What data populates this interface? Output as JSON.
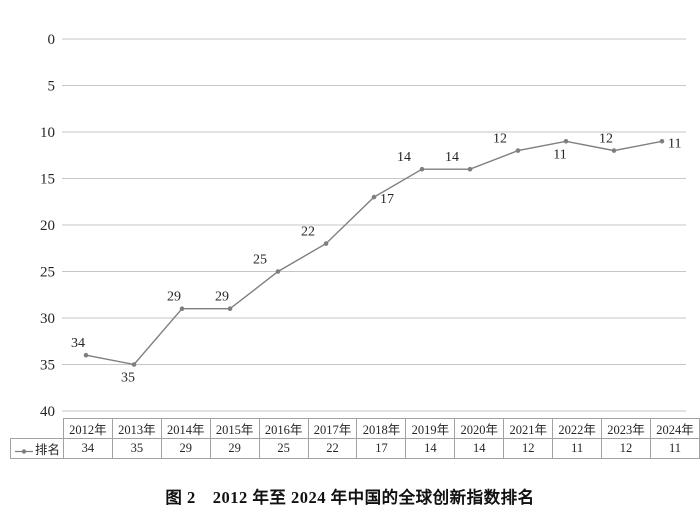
{
  "chart_data": {
    "type": "line",
    "title": "",
    "categories": [
      "2012年",
      "2013年",
      "2014年",
      "2015年",
      "2016年",
      "2017年",
      "2018年",
      "2019年",
      "2020年",
      "2021年",
      "2022年",
      "2023年",
      "2024年"
    ],
    "series": [
      {
        "name": "排名",
        "values": [
          34,
          35,
          29,
          29,
          25,
          22,
          17,
          14,
          14,
          12,
          11,
          12,
          11
        ]
      }
    ],
    "y_axis": {
      "min": 0,
      "max": 40,
      "step": 5,
      "inverted": true,
      "ticks": [
        0,
        5,
        10,
        15,
        20,
        25,
        30,
        35,
        40
      ]
    },
    "grid": true,
    "legend_position": "table-left",
    "label_positions": [
      "above",
      "below",
      "above",
      "above",
      "above-left",
      "above-left",
      "right",
      "above-left",
      "above-left",
      "above-left",
      "below",
      "above",
      "right"
    ],
    "colors": {
      "line": "#7f7f7f",
      "marker": "#7f7f7f",
      "grid": "#c6c6c6",
      "text": "#262626",
      "table_border": "#a2a2a2"
    }
  },
  "table": {
    "legend_label": "排名",
    "headers": [
      "2012年",
      "2013年",
      "2014年",
      "2015年",
      "2016年",
      "2017年",
      "2018年",
      "2019年",
      "2020年",
      "2021年",
      "2022年",
      "2023年",
      "2024年"
    ],
    "values": [
      "34",
      "35",
      "29",
      "29",
      "25",
      "22",
      "17",
      "14",
      "14",
      "12",
      "11",
      "12",
      "11"
    ]
  },
  "caption": {
    "text": "图 2　2012 年至 2024 年中国的全球创新指数排名"
  }
}
